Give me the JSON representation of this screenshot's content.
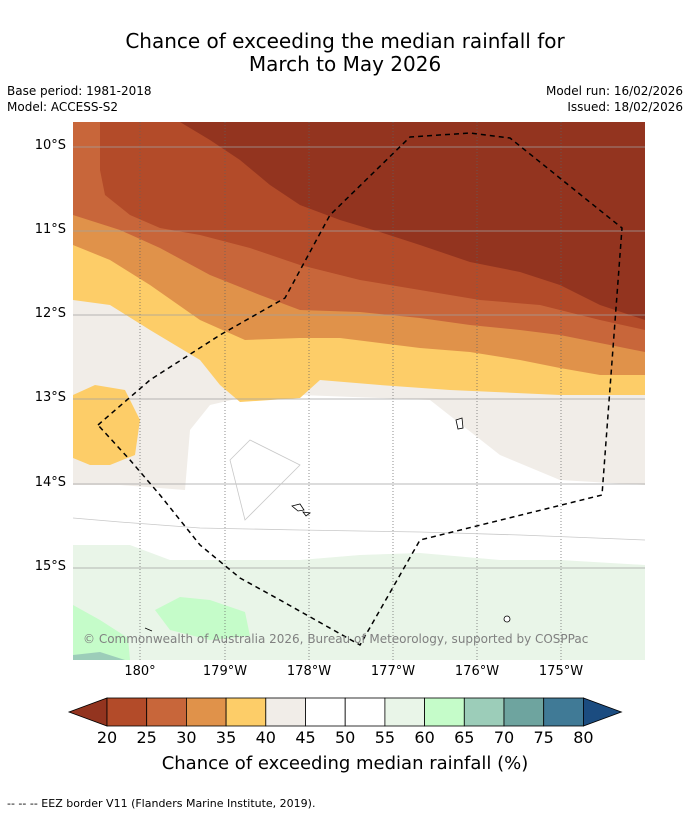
{
  "title_line1": "Chance of exceeding the median rainfall for",
  "title_line2": "March to May 2026",
  "meta": {
    "base_period": "Base period: 1981-2018",
    "model": "Model: ACCESS-S2",
    "model_run": "Model run: 16/02/2026",
    "issued": "Issued: 18/02/2026"
  },
  "map": {
    "lat_labels": [
      "10°S",
      "11°S",
      "12°S",
      "13°S",
      "14°S",
      "15°S"
    ],
    "lon_labels": [
      "180°",
      "179°W",
      "178°W",
      "177°W",
      "176°W",
      "175°W"
    ],
    "copyright": "© Commonwealth of Australia 2026, Bureau of Meteorology, supported by COSPPac"
  },
  "colorbar": {
    "ticks": [
      "20",
      "25",
      "30",
      "35",
      "40",
      "45",
      "50",
      "55",
      "60",
      "65",
      "70",
      "75",
      "80"
    ],
    "label": "Chance of exceeding median rainfall (%)",
    "colors": [
      "#93341f",
      "#b34b29",
      "#c8663a",
      "#e0924a",
      "#fdcd68",
      "#f1ede8",
      "#ffffff",
      "#ffffff",
      "#e9f5e8",
      "#c5fcc9",
      "#9ccdb9",
      "#6ea49f",
      "#407a96",
      "#1b4c80"
    ]
  },
  "legend": "--  --  -- EEZ border V11 (Flanders Marine Institute, 2019)."
}
